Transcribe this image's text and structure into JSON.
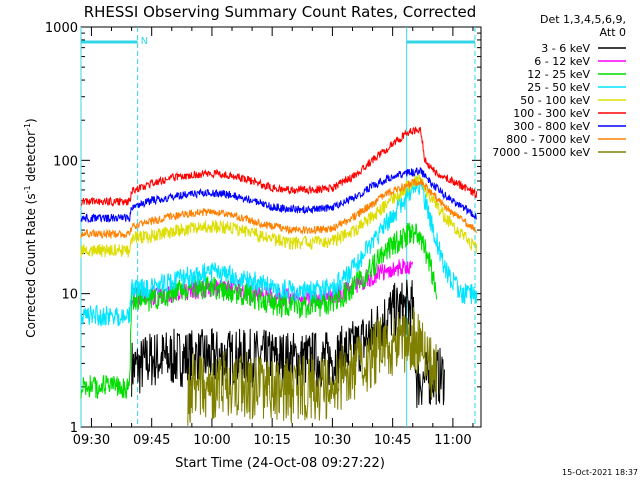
{
  "chart_data": {
    "type": "line",
    "title": "RHESSI Observing Summary Count Rates, Corrected",
    "xlabel": "Start Time (24-Oct-08 09:27:22)",
    "ylabel_main": "Corrected Count Rate (s",
    "ylabel_sup1": "-1",
    "ylabel_mid": " detector",
    "ylabel_sup2": "-1",
    "ylabel_end": ")",
    "y_scale": "log",
    "ylim": [
      1,
      1000
    ],
    "xlim_minutes_after_0930": [
      -2.6,
      97
    ],
    "x_ticks": [
      {
        "m": 0,
        "label": "09:30"
      },
      {
        "m": 15,
        "label": "09:45"
      },
      {
        "m": 30,
        "label": "10:00"
      },
      {
        "m": 45,
        "label": "10:15"
      },
      {
        "m": 60,
        "label": "10:30"
      },
      {
        "m": 75,
        "label": "10:45"
      },
      {
        "m": 90,
        "label": "11:00"
      }
    ],
    "y_ticks": [
      {
        "v": 1,
        "label": "1"
      },
      {
        "v": 10,
        "label": "10"
      },
      {
        "v": 100,
        "label": "100"
      },
      {
        "v": 1000,
        "label": "1000"
      }
    ],
    "legend_header": [
      "Det 1,3,4,5,6,9,",
      "Att 0"
    ],
    "timestamp": "15-Oct-2021 18:37",
    "vertical_lines": [
      {
        "m": -2.6,
        "style": "solid"
      },
      {
        "m": 11.5,
        "style": "dashed"
      },
      {
        "m": 78.5,
        "style": "solid"
      },
      {
        "m": 95.5,
        "style": "dashed"
      }
    ],
    "top_bars": [
      {
        "from": -2.6,
        "to": 11.5,
        "label": "N"
      },
      {
        "from": 78.5,
        "to": 95.5,
        "label": ""
      }
    ],
    "series": [
      {
        "name": "3 - 6 keV",
        "color": "#000000",
        "points": [
          [
            10,
            2.8
          ],
          [
            12,
            2.8
          ],
          [
            14,
            3.2
          ],
          [
            20,
            3.3
          ],
          [
            30,
            3.3
          ],
          [
            40,
            3.3
          ],
          [
            50,
            3.2
          ],
          [
            60,
            3.2
          ],
          [
            66,
            4.0
          ],
          [
            70,
            5.0
          ],
          [
            74,
            7.0
          ],
          [
            78,
            7.8
          ],
          [
            80,
            7.8
          ],
          [
            81,
            2.2
          ],
          [
            85,
            2.4
          ],
          [
            88,
            2.4
          ]
        ]
      },
      {
        "name": "6 - 12 keV",
        "color": "#ff00ff",
        "points": [
          [
            10,
            9.5
          ],
          [
            15,
            9.5
          ],
          [
            20,
            10
          ],
          [
            25,
            10.5
          ],
          [
            30,
            11
          ],
          [
            35,
            11
          ],
          [
            40,
            10.2
          ],
          [
            45,
            9.5
          ],
          [
            50,
            9.3
          ],
          [
            55,
            9.3
          ],
          [
            60,
            9.6
          ],
          [
            65,
            11
          ],
          [
            68,
            12.5
          ],
          [
            72,
            14.5
          ],
          [
            76,
            15.5
          ],
          [
            80,
            15.8
          ]
        ]
      },
      {
        "name": "12 - 25 keV",
        "color": "#00dd00",
        "points": [
          [
            -2.6,
            2
          ],
          [
            9.5,
            2
          ],
          [
            10,
            9.0
          ],
          [
            15,
            9.0
          ],
          [
            20,
            10
          ],
          [
            25,
            11
          ],
          [
            30,
            11
          ],
          [
            35,
            10.5
          ],
          [
            40,
            9.5
          ],
          [
            45,
            8.3
          ],
          [
            50,
            8.0
          ],
          [
            55,
            8.0
          ],
          [
            60,
            8.5
          ],
          [
            65,
            11
          ],
          [
            70,
            16
          ],
          [
            74,
            22
          ],
          [
            78,
            27
          ],
          [
            80,
            29
          ],
          [
            82,
            26
          ],
          [
            84,
            18
          ],
          [
            86,
            10
          ]
        ]
      },
      {
        "name": "25 - 50 keV",
        "color": "#00e5ff",
        "points": [
          [
            -2.6,
            6.8
          ],
          [
            9.5,
            6.8
          ],
          [
            10,
            10.8
          ],
          [
            15,
            11
          ],
          [
            20,
            12.5
          ],
          [
            25,
            13.5
          ],
          [
            30,
            14.5
          ],
          [
            35,
            13.5
          ],
          [
            40,
            12.5
          ],
          [
            45,
            11
          ],
          [
            50,
            10.5
          ],
          [
            55,
            10.5
          ],
          [
            60,
            11
          ],
          [
            65,
            15
          ],
          [
            70,
            24
          ],
          [
            74,
            36
          ],
          [
            78,
            50
          ],
          [
            80,
            60
          ],
          [
            82,
            66
          ],
          [
            84,
            40
          ],
          [
            88,
            15
          ],
          [
            92,
            10
          ],
          [
            96,
            10
          ]
        ]
      },
      {
        "name": "50 - 100 keV",
        "color": "#dddd00",
        "points": [
          [
            -2.6,
            21
          ],
          [
            9.5,
            21
          ],
          [
            10,
            26
          ],
          [
            15,
            27
          ],
          [
            20,
            29
          ],
          [
            25,
            31
          ],
          [
            30,
            32
          ],
          [
            35,
            31
          ],
          [
            40,
            28.5
          ],
          [
            45,
            25.5
          ],
          [
            50,
            24
          ],
          [
            55,
            24
          ],
          [
            60,
            25
          ],
          [
            65,
            29
          ],
          [
            70,
            38
          ],
          [
            74,
            48
          ],
          [
            78,
            60
          ],
          [
            80,
            68
          ],
          [
            82,
            72
          ],
          [
            84,
            55
          ],
          [
            88,
            38
          ],
          [
            92,
            28
          ],
          [
            96,
            22
          ]
        ]
      },
      {
        "name": "100 - 300 keV",
        "color": "#ff0000",
        "points": [
          [
            -2.6,
            49
          ],
          [
            9.5,
            49
          ],
          [
            10,
            58
          ],
          [
            15,
            67
          ],
          [
            20,
            74
          ],
          [
            25,
            78
          ],
          [
            30,
            80
          ],
          [
            35,
            77
          ],
          [
            40,
            70
          ],
          [
            45,
            62
          ],
          [
            50,
            60
          ],
          [
            55,
            60
          ],
          [
            60,
            62
          ],
          [
            65,
            75
          ],
          [
            70,
            100
          ],
          [
            74,
            125
          ],
          [
            78,
            155
          ],
          [
            80,
            165
          ],
          [
            82,
            170
          ],
          [
            83,
            100
          ],
          [
            86,
            80
          ],
          [
            90,
            70
          ],
          [
            94,
            60
          ],
          [
            96,
            55
          ]
        ]
      },
      {
        "name": "300 - 800 keV",
        "color": "#0000ff",
        "points": [
          [
            -2.6,
            37
          ],
          [
            9.5,
            37
          ],
          [
            10,
            44
          ],
          [
            15,
            50
          ],
          [
            20,
            53
          ],
          [
            25,
            56
          ],
          [
            30,
            57
          ],
          [
            35,
            55
          ],
          [
            40,
            50
          ],
          [
            45,
            45
          ],
          [
            50,
            43
          ],
          [
            55,
            43
          ],
          [
            60,
            44
          ],
          [
            65,
            52
          ],
          [
            70,
            64
          ],
          [
            74,
            74
          ],
          [
            78,
            80
          ],
          [
            80,
            82
          ],
          [
            82,
            82
          ],
          [
            84,
            70
          ],
          [
            88,
            55
          ],
          [
            92,
            45
          ],
          [
            96,
            38
          ]
        ]
      },
      {
        "name": "800 - 7000 keV",
        "color": "#ff8000",
        "points": [
          [
            -2.6,
            28
          ],
          [
            9.5,
            28
          ],
          [
            10,
            32
          ],
          [
            15,
            35
          ],
          [
            20,
            38
          ],
          [
            25,
            40
          ],
          [
            30,
            41
          ],
          [
            35,
            39
          ],
          [
            40,
            35
          ],
          [
            45,
            32
          ],
          [
            50,
            30
          ],
          [
            55,
            30
          ],
          [
            60,
            31
          ],
          [
            65,
            37
          ],
          [
            70,
            47
          ],
          [
            74,
            57
          ],
          [
            78,
            64
          ],
          [
            80,
            68
          ],
          [
            82,
            70
          ],
          [
            84,
            60
          ],
          [
            88,
            45
          ],
          [
            92,
            36
          ],
          [
            96,
            30
          ]
        ]
      },
      {
        "name": "7000 - 15000 keV",
        "color": "#808000",
        "points": [
          [
            24,
            1.8
          ],
          [
            26,
            2.2
          ],
          [
            30,
            2.0
          ],
          [
            35,
            2.2
          ],
          [
            40,
            2.0
          ],
          [
            45,
            1.8
          ],
          [
            50,
            1.9
          ],
          [
            55,
            2.0
          ],
          [
            58,
            1.9
          ],
          [
            61,
            2.2
          ],
          [
            64,
            2.6
          ],
          [
            68,
            3.0
          ],
          [
            72,
            3.8
          ],
          [
            76,
            4.2
          ],
          [
            80,
            4.6
          ],
          [
            82,
            4.0
          ],
          [
            84,
            3.0
          ],
          [
            86,
            2.5
          ]
        ]
      }
    ]
  }
}
